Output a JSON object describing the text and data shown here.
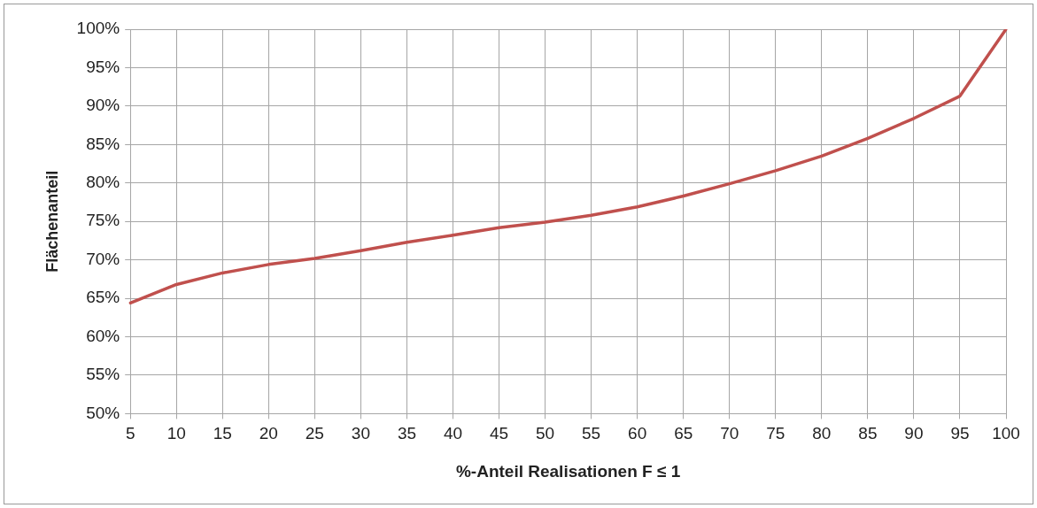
{
  "chart_data": {
    "type": "line",
    "xlabel": "%-Anteil Realisationen F ≤ 1",
    "ylabel": "Flächenanteil",
    "categories": [
      "5",
      "10",
      "15",
      "20",
      "25",
      "30",
      "35",
      "40",
      "45",
      "50",
      "55",
      "60",
      "65",
      "70",
      "75",
      "80",
      "85",
      "90",
      "95",
      "100"
    ],
    "series": [
      {
        "color": "#c0504d",
        "values": [
          64.4,
          66.8,
          68.3,
          69.4,
          70.2,
          71.2,
          72.3,
          73.2,
          74.2,
          74.9,
          75.8,
          76.9,
          78.3,
          79.9,
          81.6,
          83.5,
          85.8,
          88.4,
          91.3,
          100
        ]
      }
    ],
    "ylim": [
      50,
      100
    ],
    "yticks": [
      {
        "value": 50,
        "label": "50%"
      },
      {
        "value": 55,
        "label": "55%"
      },
      {
        "value": 60,
        "label": "60%"
      },
      {
        "value": 65,
        "label": "65%"
      },
      {
        "value": 70,
        "label": "70%"
      },
      {
        "value": 75,
        "label": "75%"
      },
      {
        "value": 80,
        "label": "80%"
      },
      {
        "value": 85,
        "label": "85%"
      },
      {
        "value": 90,
        "label": "90%"
      },
      {
        "value": 95,
        "label": "95%"
      },
      {
        "value": 100,
        "label": "100%"
      }
    ],
    "grid": true,
    "legend": false,
    "marker": "none",
    "line_style": "solid"
  }
}
